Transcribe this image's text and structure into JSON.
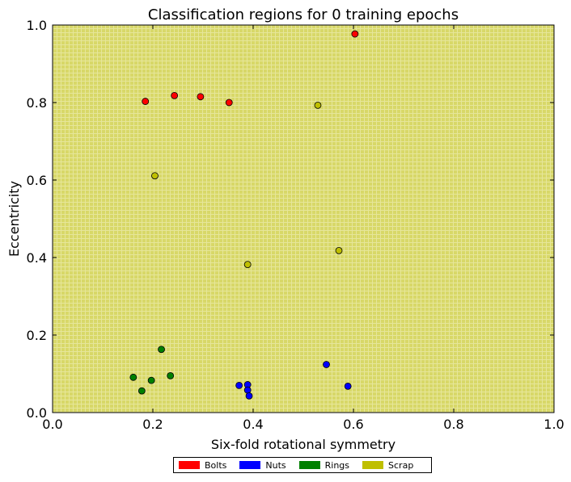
{
  "chart_data": {
    "type": "scatter",
    "title": "Classification regions for 0 training epochs",
    "xlabel": "Six-fold rotational symmetry",
    "ylabel": "Eccentricity",
    "xlim": [
      0.0,
      1.0
    ],
    "ylim": [
      0.0,
      1.0
    ],
    "xticks": [
      "0.0",
      "0.2",
      "0.4",
      "0.6",
      "0.8",
      "1.0"
    ],
    "yticks": [
      "0.0",
      "0.2",
      "0.4",
      "0.6",
      "0.8",
      "1.0"
    ],
    "background_region": {
      "class": "Scrap",
      "color": "#d9d964"
    },
    "legend_position": "bottom-center",
    "series": [
      {
        "name": "Bolts",
        "color": "#ff0000",
        "x": [
          0.185,
          0.243,
          0.295,
          0.352,
          0.603
        ],
        "y": [
          0.803,
          0.818,
          0.815,
          0.8,
          0.977
        ]
      },
      {
        "name": "Nuts",
        "color": "#0000ff",
        "x": [
          0.372,
          0.389,
          0.389,
          0.392,
          0.546,
          0.589
        ],
        "y": [
          0.07,
          0.072,
          0.058,
          0.043,
          0.124,
          0.068
        ]
      },
      {
        "name": "Rings",
        "color": "#008000",
        "x": [
          0.161,
          0.178,
          0.197,
          0.217,
          0.235
        ],
        "y": [
          0.091,
          0.056,
          0.083,
          0.163,
          0.095
        ]
      },
      {
        "name": "Scrap",
        "color": "#bfbf00",
        "x": [
          0.204,
          0.389,
          0.529,
          0.571
        ],
        "y": [
          0.611,
          0.382,
          0.793,
          0.418
        ]
      }
    ]
  }
}
